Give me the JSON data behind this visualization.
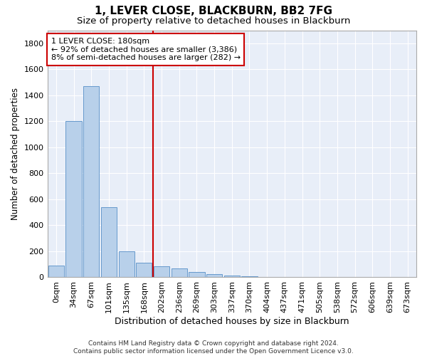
{
  "title": "1, LEVER CLOSE, BLACKBURN, BB2 7FG",
  "subtitle": "Size of property relative to detached houses in Blackburn",
  "xlabel": "Distribution of detached houses by size in Blackburn",
  "ylabel": "Number of detached properties",
  "bar_color": "#b8d0ea",
  "bar_edge_color": "#6699cc",
  "background_color": "#e8eef8",
  "grid_color": "#ffffff",
  "vline_color": "#cc0000",
  "vline_x": 5.5,
  "annotation_text": "1 LEVER CLOSE: 180sqm\n← 92% of detached houses are smaller (3,386)\n8% of semi-detached houses are larger (282) →",
  "annotation_box_facecolor": "#ffffff",
  "annotation_box_edge": "#cc0000",
  "categories": [
    "0sqm",
    "34sqm",
    "67sqm",
    "101sqm",
    "135sqm",
    "168sqm",
    "202sqm",
    "236sqm",
    "269sqm",
    "303sqm",
    "337sqm",
    "370sqm",
    "404sqm",
    "437sqm",
    "471sqm",
    "505sqm",
    "538sqm",
    "572sqm",
    "606sqm",
    "639sqm",
    "673sqm"
  ],
  "values": [
    90,
    1200,
    1470,
    540,
    200,
    110,
    80,
    65,
    40,
    20,
    10,
    5,
    0,
    0,
    0,
    0,
    0,
    0,
    0,
    0,
    0
  ],
  "ylim": [
    0,
    1900
  ],
  "yticks": [
    0,
    200,
    400,
    600,
    800,
    1000,
    1200,
    1400,
    1600,
    1800
  ],
  "footnote": "Contains HM Land Registry data © Crown copyright and database right 2024.\nContains public sector information licensed under the Open Government Licence v3.0.",
  "title_fontsize": 11,
  "subtitle_fontsize": 9.5,
  "xlabel_fontsize": 9,
  "ylabel_fontsize": 8.5,
  "tick_fontsize": 8,
  "annotation_fontsize": 8,
  "footnote_fontsize": 6.5
}
